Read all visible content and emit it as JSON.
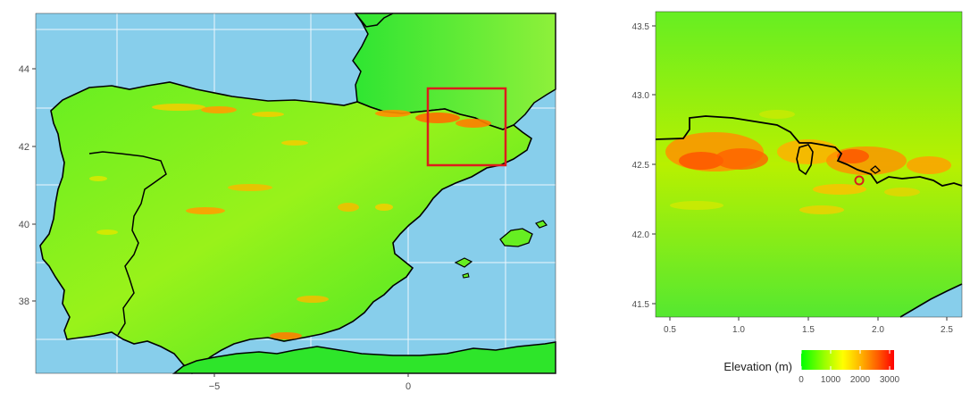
{
  "left_map": {
    "x_ticks": [
      "−5",
      "0"
    ],
    "y_ticks": [
      "44",
      "42",
      "40",
      "38"
    ]
  },
  "right_map": {
    "x_ticks": [
      "0.5",
      "1.0",
      "1.5",
      "2.0",
      "2.5"
    ],
    "y_ticks": [
      "43.5",
      "43.0",
      "42.5",
      "42.0",
      "41.5"
    ]
  },
  "legend": {
    "title": "Elevation (m)",
    "ticks": [
      "0",
      "1000",
      "2000",
      "3000"
    ],
    "colors": [
      "#00ff00",
      "#99ff00",
      "#ffff00",
      "#ffb000",
      "#ff5000",
      "#ff0000"
    ]
  },
  "colors": {
    "sea": "#87ceeb",
    "land_low": "#22e12a",
    "land_mid": "#a8f000",
    "mountain": "#f5a000",
    "border": "#000000",
    "highlight": "#dd1c1c"
  }
}
